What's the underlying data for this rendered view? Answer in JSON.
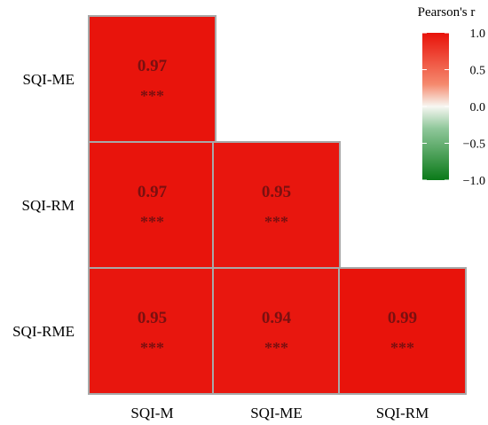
{
  "chart_data": {
    "type": "heatmap",
    "rows": [
      "SQI-ME",
      "SQI-RM",
      "SQI-RME"
    ],
    "columns": [
      "SQI-M",
      "SQI-ME",
      "SQI-RM"
    ],
    "cells": [
      {
        "row": "SQI-ME",
        "col": "SQI-M",
        "value": 0.97,
        "label": "0.97",
        "sig": "***"
      },
      {
        "row": "SQI-RM",
        "col": "SQI-M",
        "value": 0.97,
        "label": "0.97",
        "sig": "***"
      },
      {
        "row": "SQI-RM",
        "col": "SQI-ME",
        "value": 0.95,
        "label": "0.95",
        "sig": "***"
      },
      {
        "row": "SQI-RME",
        "col": "SQI-M",
        "value": 0.95,
        "label": "0.95",
        "sig": "***"
      },
      {
        "row": "SQI-RME",
        "col": "SQI-ME",
        "value": 0.94,
        "label": "0.94",
        "sig": "***"
      },
      {
        "row": "SQI-RME",
        "col": "SQI-RM",
        "value": 0.99,
        "label": "0.99",
        "sig": "***"
      }
    ],
    "legend": {
      "title": "Pearson's r",
      "range": [
        -1.0,
        1.0
      ],
      "ticks": [
        "1.0",
        "0.5",
        "0.0",
        "−0.5",
        "−1.0"
      ],
      "colors": {
        "high": "#e8120a",
        "mid": "#f5f5f0",
        "low": "#0a7a18"
      },
      "position": "top-right"
    }
  }
}
